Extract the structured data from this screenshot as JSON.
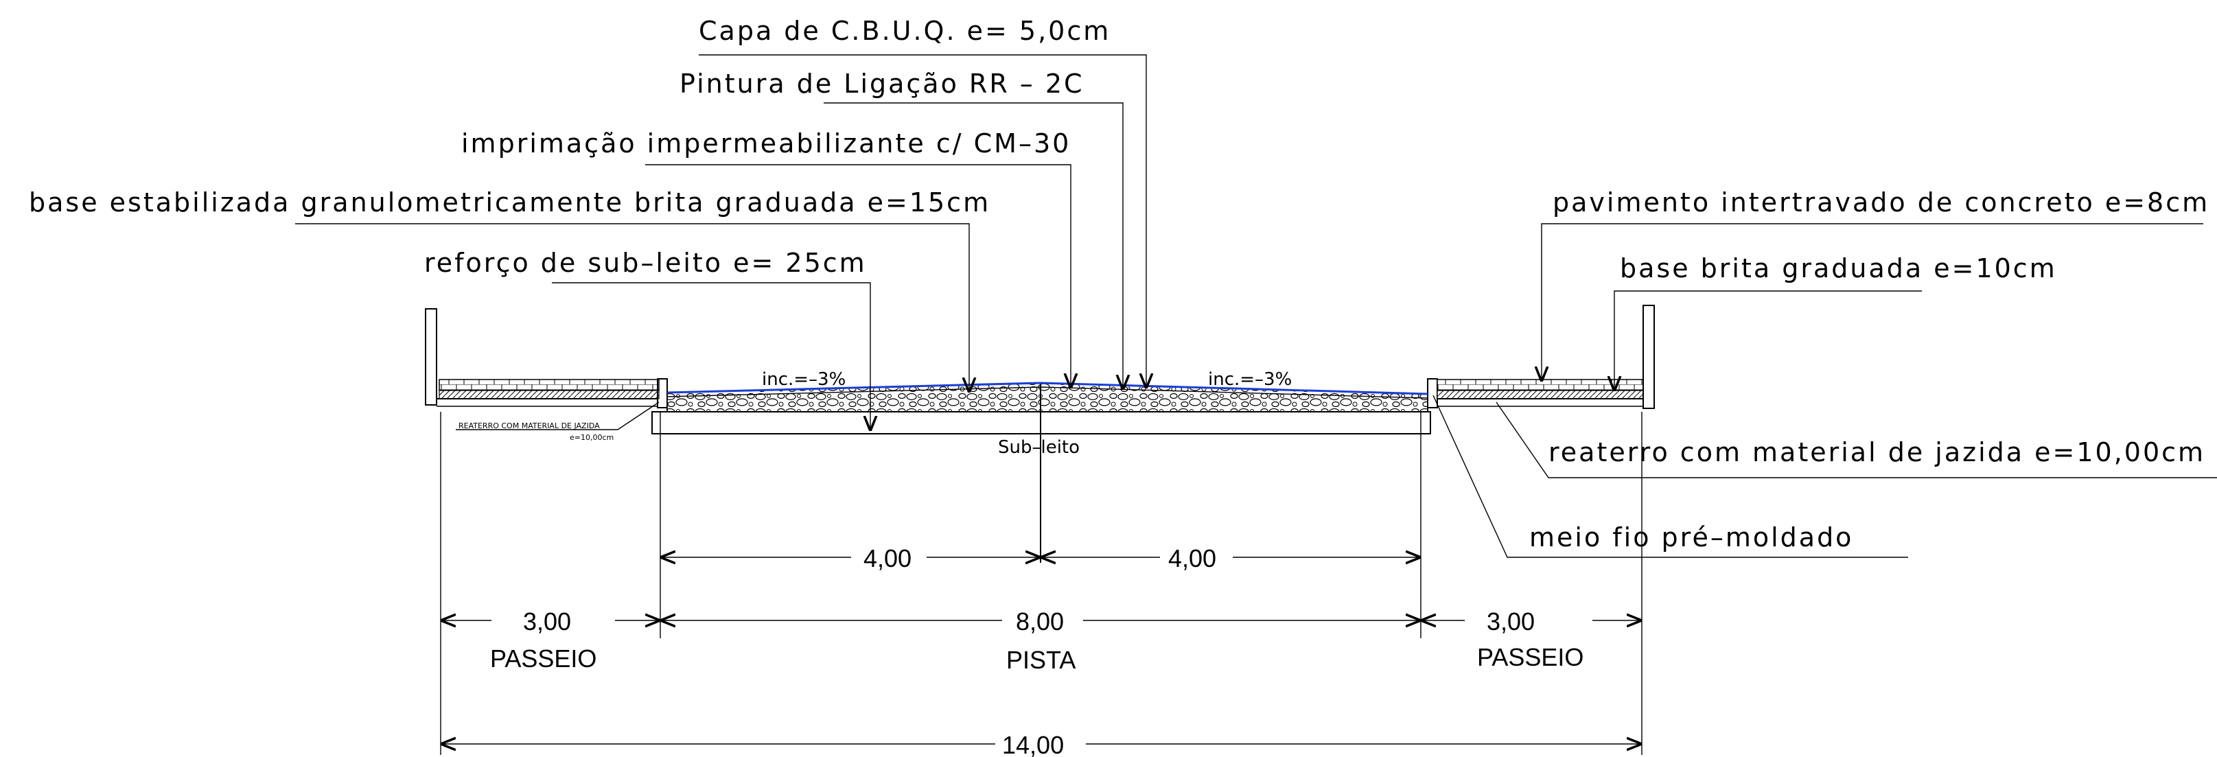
{
  "layers": {
    "capa": "Capa de C.B.U.Q.  e= 5,0cm",
    "pintura": "Pintura de Ligação RR – 2C",
    "imprimacao": "imprimação impermeabilizante c/ CM–30",
    "base": "base estabilizada granulometricamente brita graduada e=15cm",
    "reforco": "reforço de sub–leito e= 25cm",
    "pavimento": "pavimento intertravado de concreto e=8cm",
    "base_brita": "base brita graduada e=10cm",
    "reaterro": "reaterro com material de jazida e=10,00cm",
    "meio_fio": "meio fio pré–moldado",
    "reaterro_small": "REATERRO COM MATERIAL DE JAZIDA",
    "reaterro_small_e": "e=10,00cm"
  },
  "slopes": {
    "left": "inc.=–3%",
    "right": "inc.=–3%"
  },
  "subleito": "Sub–leito",
  "dimensions": {
    "half_left": "4,00",
    "half_right": "4,00",
    "passeio_left": "3,00",
    "pista": "8,00",
    "passeio_right": "3,00",
    "total": "14,00"
  },
  "zones": {
    "passeio_left": "PASSEIO",
    "pista": "PISTA",
    "passeio_right": "PASSEIO"
  }
}
